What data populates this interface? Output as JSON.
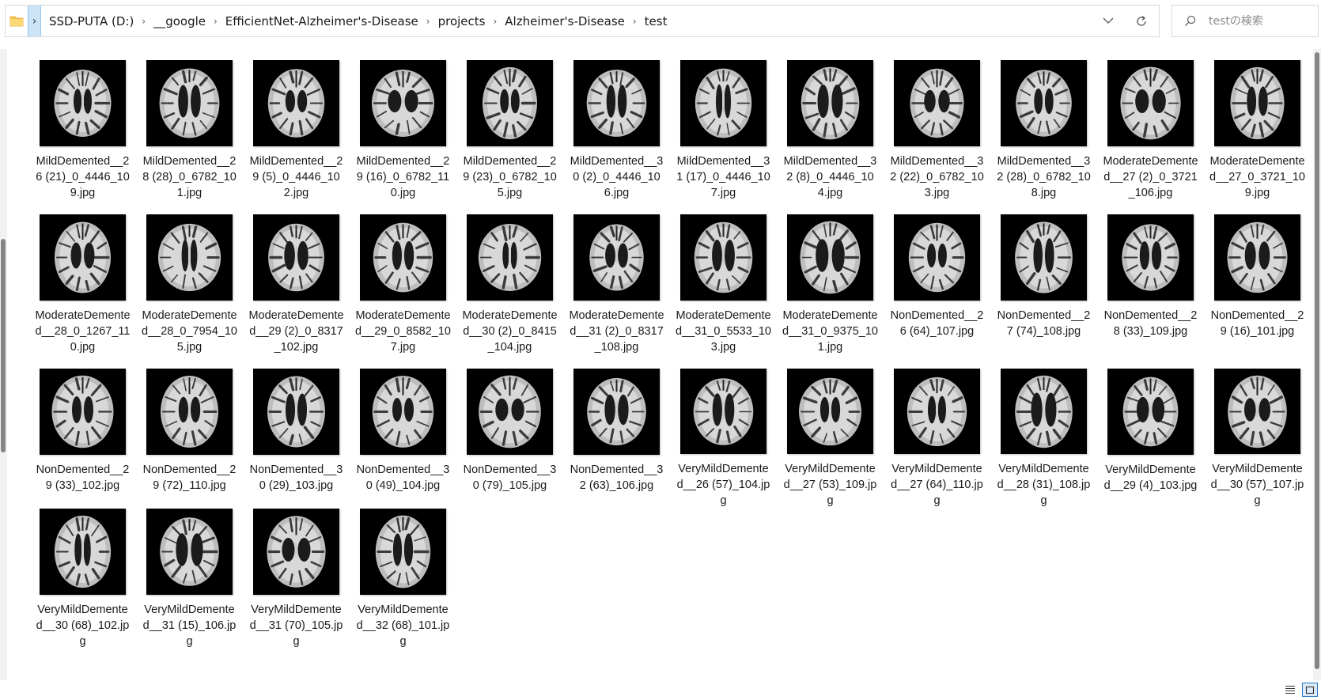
{
  "address_bar": {
    "crumbs": [
      "SSD-PUTA (D:)",
      "__google",
      "EfficientNet-Alzheimer's-Disease",
      "projects",
      "Alzheimer's-Disease",
      "test"
    ]
  },
  "search": {
    "placeholder": "testの検索"
  },
  "icons": {
    "folder": "folder-icon",
    "expand": "chevron-right-icon",
    "dropdown": "chevron-down-icon",
    "refresh": "refresh-icon",
    "search": "search-icon",
    "details_view": "details-view-icon",
    "large_icons_view": "large-icons-view-icon"
  },
  "colors": {
    "accent": "#2b78c5",
    "selected_bg": "#cce4f7",
    "thumb_bg": "#000000",
    "folder": "#f8c44f"
  },
  "files": [
    "MildDemented__26 (21)_0_4446_109.jpg",
    "MildDemented__28 (28)_0_6782_101.jpg",
    "MildDemented__29 (5)_0_4446_102.jpg",
    "MildDemented__29 (16)_0_6782_110.jpg",
    "MildDemented__29 (23)_0_6782_105.jpg",
    "MildDemented__30 (2)_0_4446_106.jpg",
    "MildDemented__31 (17)_0_4446_107.jpg",
    "MildDemented__32 (8)_0_4446_104.jpg",
    "MildDemented__32 (22)_0_6782_103.jpg",
    "MildDemented__32 (28)_0_6782_108.jpg",
    "ModerateDemented__27 (2)_0_3721_106.jpg",
    "ModerateDemented__27_0_3721_109.jpg",
    "ModerateDemented__28_0_1267_110.jpg",
    "ModerateDemented__28_0_7954_105.jpg",
    "ModerateDemented__29 (2)_0_8317_102.jpg",
    "ModerateDemented__29_0_8582_107.jpg",
    "ModerateDemented__30 (2)_0_8415_104.jpg",
    "ModerateDemented__31 (2)_0_8317_108.jpg",
    "ModerateDemented__31_0_5533_103.jpg",
    "ModerateDemented__31_0_9375_101.jpg",
    "NonDemented__26 (64)_107.jpg",
    "NonDemented__27 (74)_108.jpg",
    "NonDemented__28 (33)_109.jpg",
    "NonDemented__29 (16)_101.jpg",
    "NonDemented__29 (33)_102.jpg",
    "NonDemented__29 (72)_110.jpg",
    "NonDemented__30 (29)_103.jpg",
    "NonDemented__30 (49)_104.jpg",
    "NonDemented__30 (79)_105.jpg",
    "NonDemented__32 (63)_106.jpg",
    "VeryMildDemented__26 (57)_104.jpg",
    "VeryMildDemented__27 (53)_109.jpg",
    "VeryMildDemented__27 (64)_110.jpg",
    "VeryMildDemented__28 (31)_108.jpg",
    "VeryMildDemented__29 (4)_103.jpg",
    "VeryMildDemented__30 (57)_107.jpg",
    "VeryMildDemented__30 (68)_102.jpg",
    "VeryMildDemented__31 (15)_106.jpg",
    "VeryMildDemented__31 (70)_105.jpg",
    "VeryMildDemented__32 (68)_101.jpg"
  ]
}
